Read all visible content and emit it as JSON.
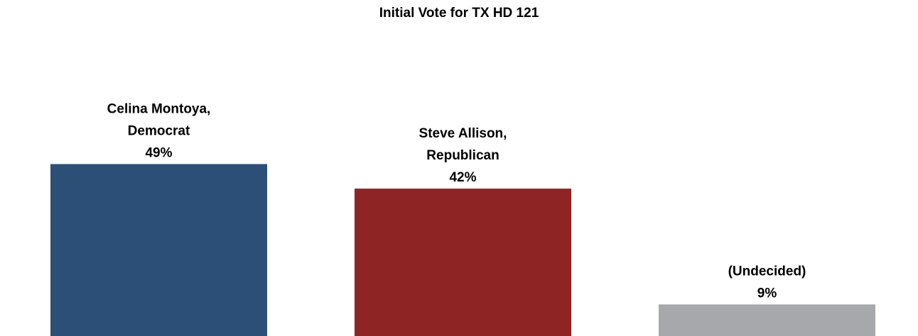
{
  "chart_data": {
    "type": "bar",
    "title": "Initial Vote for TX HD 121",
    "categories": [
      "Celina Montoya, Democrat",
      "Steve Allison, Republican",
      "(Undecided)"
    ],
    "label_lines": [
      [
        "Celina Montoya,",
        "Democrat"
      ],
      [
        "Steve Allison,",
        "Republican"
      ],
      [
        "(Undecided)"
      ]
    ],
    "values": [
      49,
      42,
      9
    ],
    "value_labels": [
      "49%",
      "42%",
      "9%"
    ],
    "colors": [
      "#2B4F77",
      "#8F2424",
      "#A7A8AB"
    ],
    "xlabel": "",
    "ylabel": "",
    "ylim": [
      0,
      52
    ],
    "grid": false,
    "legend": "none"
  }
}
